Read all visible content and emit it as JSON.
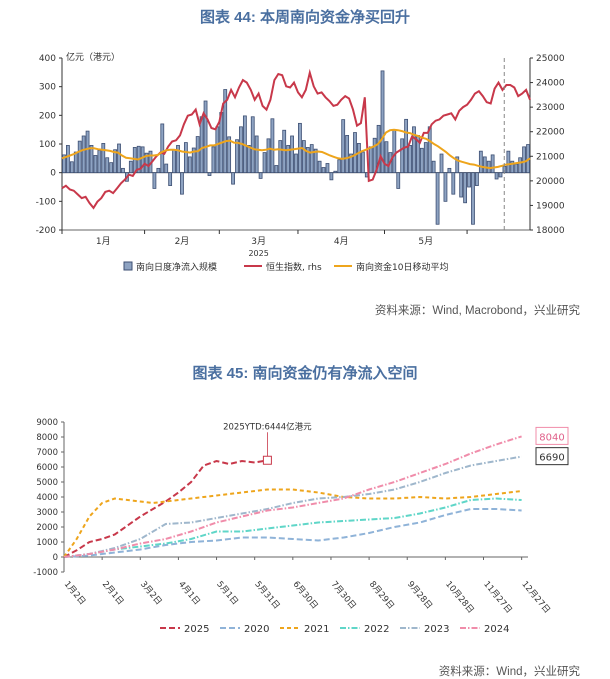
{
  "figure44": {
    "title": "图表 44: 本周南向资金净买回升",
    "source": "资料来源：Wind, Macrobond，兴业研究",
    "unit_label": "亿元（港元）",
    "year_label": "2025"
  },
  "figure45": {
    "title": "图表 45: 南向资金仍有净流入空间",
    "source": "资料来源：Wind，兴业研究",
    "annotation": "2025YTD:6444亿港元"
  },
  "chart_data": [
    {
      "type": "bar+line",
      "title": "图表 44: 本周南向资金净买回升",
      "left_axis": {
        "label": "亿元（港元）",
        "ylim": [
          -200,
          400
        ],
        "ticks": [
          -200,
          -100,
          0,
          100,
          200,
          300,
          400
        ]
      },
      "right_axis": {
        "ylim": [
          18000,
          25000
        ],
        "ticks": [
          18000,
          19000,
          20000,
          21000,
          22000,
          23000,
          24000,
          25000
        ]
      },
      "x_ticks": [
        "1月",
        "2月",
        "3月",
        "4月",
        "5月"
      ],
      "x_sublabel": "2025",
      "legend": [
        "南向日度净流入规模",
        "恒生指数, rhs",
        "南向资金10日移动平均"
      ],
      "colors": {
        "bars": "#3d4f73",
        "hsi": "#c8384a",
        "ma10": "#eea51c"
      },
      "series": [
        {
          "name": "南向日度净流入规模",
          "kind": "bar",
          "values": [
            62,
            95,
            38,
            72,
            110,
            128,
            145,
            95,
            60,
            78,
            102,
            52,
            35,
            80,
            100,
            15,
            -30,
            40,
            88,
            92,
            90,
            68,
            75,
            -55,
            15,
            170,
            30,
            -45,
            80,
            95,
            -75,
            105,
            55,
            86,
            126,
            195,
            250,
            -10,
            90,
            160,
            210,
            290,
            125,
            -40,
            115,
            160,
            198,
            95,
            195,
            128,
            -20,
            70,
            118,
            188,
            25,
            112,
            148,
            95,
            128,
            65,
            172,
            112,
            88,
            98,
            82,
            40,
            18,
            32,
            -25,
            5,
            45,
            185,
            130,
            65,
            140,
            102,
            72,
            -15,
            90,
            120,
            165,
            355,
            108,
            70,
            150,
            -55,
            118,
            186,
            95,
            160,
            130,
            85,
            105,
            160,
            40,
            -180,
            65,
            -100,
            15,
            -75,
            55,
            -85,
            -105,
            -50,
            -180,
            -45,
            75,
            55,
            40,
            62,
            -22,
            -15,
            22,
            75,
            40,
            30,
            52,
            90,
            98
          ]
        },
        {
          "name": "恒生指数, rhs",
          "kind": "line",
          "axis": "right",
          "values": [
            19700,
            19800,
            19650,
            19600,
            19450,
            19300,
            19350,
            19100,
            18900,
            19150,
            19300,
            19550,
            19600,
            19500,
            19700,
            19900,
            20050,
            20250,
            20200,
            20450,
            20500,
            20700,
            20600,
            20800,
            21000,
            21150,
            21100,
            21400,
            21600,
            21650,
            21850,
            22300,
            22650,
            22700,
            22900,
            22300,
            22750,
            22500,
            22150,
            22100,
            22400,
            23150,
            23300,
            23700,
            23400,
            23800,
            24100,
            24000,
            23700,
            23300,
            23550,
            23050,
            22900,
            23300,
            24100,
            24350,
            24300,
            23850,
            23800,
            24000,
            23600,
            23400,
            23700,
            24400,
            23850,
            23550,
            23600,
            23400,
            23250,
            23050,
            23100,
            23300,
            23450,
            23350,
            22900,
            22250,
            22350,
            23400,
            20000,
            20050,
            20450,
            21000,
            20700,
            20600,
            20950,
            21150,
            21250,
            21350,
            21400,
            21800,
            21700,
            21550,
            21950,
            21950,
            22300,
            22450,
            22500,
            22650,
            22700,
            22750,
            22500,
            22850,
            23000,
            23100,
            23300,
            23550,
            23650,
            23450,
            23200,
            23150,
            23750,
            24000,
            23700,
            23900,
            23900,
            23800,
            23450,
            23550,
            23700,
            23300
          ]
        },
        {
          "name": "南向资金10日移动平均",
          "kind": "line",
          "values": [
            50,
            55,
            60,
            65,
            72,
            78,
            82,
            85,
            85,
            82,
            80,
            78,
            76,
            72,
            70,
            60,
            52,
            50,
            48,
            46,
            52,
            58,
            60,
            60,
            62,
            72,
            78,
            80,
            80,
            78,
            74,
            72,
            70,
            74,
            75,
            86,
            90,
            95,
            95,
            100,
            105,
            110,
            112,
            105,
            104,
            100,
            94,
            88,
            82,
            80,
            78,
            80,
            84,
            80,
            82,
            80,
            78,
            80,
            82,
            84,
            86,
            76,
            70,
            72,
            74,
            72,
            66,
            60,
            55,
            50,
            48,
            50,
            54,
            60,
            68,
            75,
            80,
            86,
            92,
            100,
            118,
            140,
            148,
            150,
            148,
            145,
            140,
            138,
            132,
            128,
            122,
            118,
            110,
            100,
            92,
            82,
            72,
            60,
            50,
            42,
            38,
            34,
            30,
            28,
            24,
            20,
            18,
            16,
            18,
            20,
            24,
            28,
            30,
            32,
            34,
            36,
            40,
            50
          ]
        }
      ],
      "dashed_marker": "late May"
    },
    {
      "type": "line",
      "title": "图表 45: 南向资金仍有净流入空间",
      "ylim": [
        -1000,
        9000
      ],
      "yticks": [
        -1000,
        0,
        1000,
        2000,
        3000,
        4000,
        5000,
        6000,
        7000,
        8000,
        9000
      ],
      "x_ticks": [
        "1月2日",
        "2月1日",
        "3月2日",
        "4月1日",
        "5月1日",
        "5月31日",
        "6月30日",
        "7月30日",
        "8月29日",
        "9月28日",
        "10月28日",
        "11月27日",
        "12月27日"
      ],
      "x_range_days": [
        0,
        365
      ],
      "annotation": "2025YTD:6444亿港元",
      "end_labels": [
        "8040",
        "6690"
      ],
      "series": [
        {
          "name": "2025",
          "color": "#c8384a",
          "dash": "longdash",
          "x": [
            0,
            10,
            20,
            30,
            40,
            50,
            60,
            70,
            80,
            90,
            100,
            110,
            120,
            130,
            140,
            150,
            160
          ],
          "y": [
            0,
            450,
            1000,
            1200,
            1500,
            2100,
            2700,
            3200,
            3700,
            4300,
            5000,
            6100,
            6400,
            6200,
            6400,
            6300,
            6450
          ]
        },
        {
          "name": "2020",
          "color": "#8fb3d8",
          "dash": "longdash",
          "x": [
            0,
            20,
            40,
            60,
            80,
            100,
            120,
            140,
            160,
            180,
            200,
            220,
            240,
            260,
            280,
            300,
            320,
            340,
            360
          ],
          "y": [
            0,
            100,
            300,
            500,
            800,
            1000,
            1100,
            1300,
            1300,
            1200,
            1100,
            1300,
            1600,
            2000,
            2300,
            2800,
            3200,
            3200,
            3100
          ]
        },
        {
          "name": "2021",
          "color": "#eea51c",
          "dash": "shortdash",
          "x": [
            0,
            10,
            20,
            30,
            40,
            50,
            60,
            70,
            80,
            100,
            120,
            140,
            160,
            180,
            200,
            220,
            240,
            260,
            280,
            300,
            320,
            340,
            360
          ],
          "y": [
            0,
            1200,
            2700,
            3600,
            3900,
            3800,
            3700,
            3600,
            3700,
            3900,
            4100,
            4300,
            4500,
            4500,
            4300,
            4000,
            3900,
            3900,
            4000,
            3900,
            4000,
            4200,
            4400
          ]
        },
        {
          "name": "2022",
          "color": "#5fd6c8",
          "dash": "dashdot",
          "x": [
            0,
            20,
            40,
            60,
            80,
            100,
            120,
            140,
            160,
            180,
            200,
            220,
            240,
            260,
            280,
            300,
            320,
            340,
            360
          ],
          "y": [
            0,
            200,
            500,
            700,
            900,
            1200,
            1700,
            1700,
            1900,
            2100,
            2300,
            2400,
            2500,
            2600,
            2900,
            3300,
            3800,
            3900,
            3800
          ]
        },
        {
          "name": "2023",
          "color": "#9fb7cc",
          "dash": "dashdot",
          "x": [
            0,
            20,
            40,
            60,
            80,
            100,
            120,
            140,
            160,
            180,
            200,
            220,
            240,
            260,
            280,
            300,
            320,
            340,
            360
          ],
          "y": [
            0,
            200,
            600,
            1200,
            2200,
            2300,
            2600,
            2900,
            3200,
            3600,
            3900,
            4000,
            4200,
            4500,
            5000,
            5600,
            6100,
            6400,
            6690
          ]
        },
        {
          "name": "2024",
          "color": "#f08caa",
          "dash": "dashdot",
          "x": [
            0,
            20,
            40,
            60,
            80,
            100,
            120,
            140,
            160,
            180,
            200,
            220,
            240,
            260,
            280,
            300,
            320,
            340,
            360
          ],
          "y": [
            0,
            200,
            500,
            900,
            1200,
            1700,
            2300,
            2700,
            3100,
            3300,
            3600,
            3900,
            4500,
            5000,
            5600,
            6200,
            6900,
            7500,
            8040
          ]
        }
      ]
    }
  ]
}
